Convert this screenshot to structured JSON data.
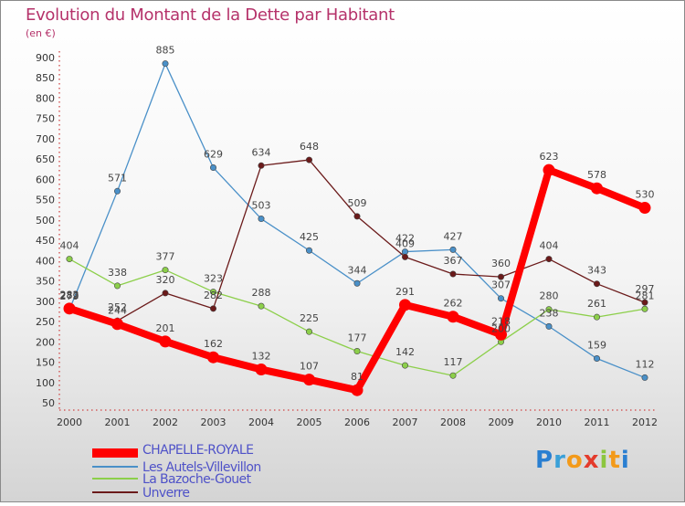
{
  "chart_data": {
    "type": "line",
    "title": "Evolution du Montant de la Dette par Habitant",
    "ylabel": "(en €)",
    "xlabel": "",
    "x": [
      "2000",
      "2001",
      "2002",
      "2003",
      "2004",
      "2005",
      "2006",
      "2007",
      "2008",
      "2009",
      "2010",
      "2011",
      "2012"
    ],
    "ylim": [
      50,
      900
    ],
    "yticks": [
      50,
      100,
      150,
      200,
      250,
      300,
      350,
      400,
      450,
      500,
      550,
      600,
      650,
      700,
      750,
      800,
      850,
      900
    ],
    "grid": false,
    "legend_position": "bottom-left",
    "series": [
      {
        "name": "CHAPELLE-ROYALE",
        "color": "#ff0000",
        "values": [
          282,
          244,
          201,
          162,
          132,
          107,
          81,
          291,
          262,
          218,
          623,
          578,
          530
        ]
      },
      {
        "name": "Les Autels-Villevillon",
        "color": "#4a90c8",
        "values": [
          279,
          571,
          885,
          629,
          503,
          425,
          344,
          422,
          427,
          307,
          238,
          159,
          112
        ]
      },
      {
        "name": "La Bazoche-Gouet",
        "color": "#8ccf4a",
        "values": [
          404,
          338,
          377,
          323,
          288,
          225,
          177,
          142,
          117,
          200,
          280,
          261,
          281
        ]
      },
      {
        "name": "Unverre",
        "color": "#6b1a1a",
        "values": [
          283,
          252,
          320,
          282,
          634,
          648,
          509,
          409,
          367,
          360,
          404,
          343,
          297
        ]
      }
    ]
  },
  "logo": {
    "text": "Proxiti"
  }
}
